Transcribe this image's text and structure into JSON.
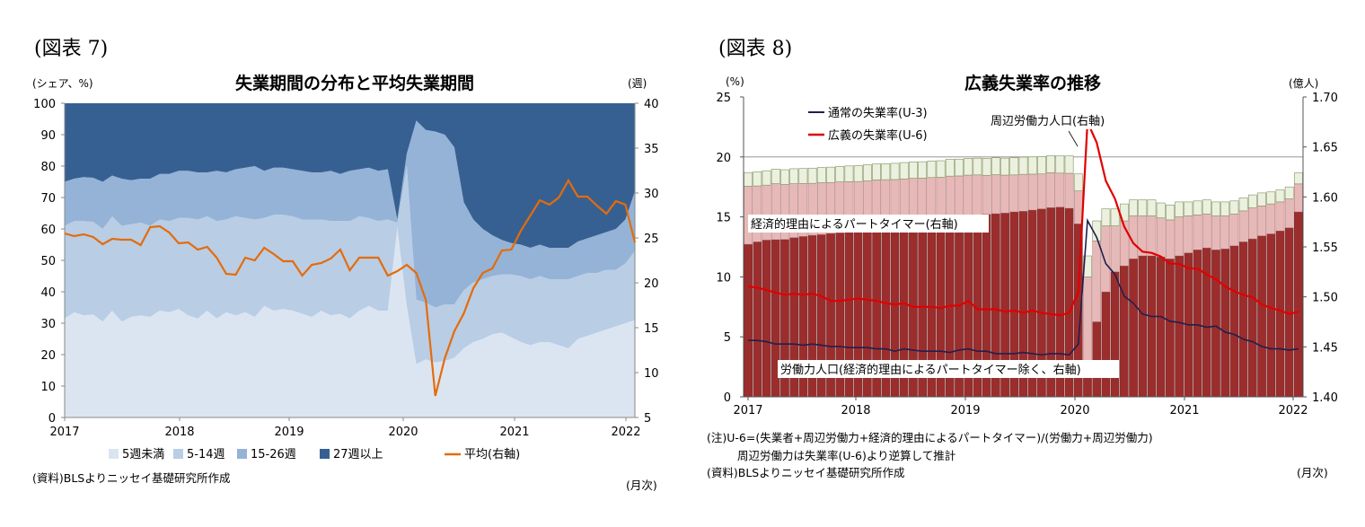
{
  "left": {
    "fig_label": "(図表 7)",
    "title": "失業期間の分布と平均失業期間",
    "left_unit": "(シェア、%)",
    "right_unit": "(週)",
    "source": "(資料)BLSよりニッセイ基礎研究所作成",
    "month_label": "(月次)",
    "legend": [
      "5週未満",
      "5-14週",
      "15-26週",
      "27週以上",
      "平均(右軸)"
    ]
  },
  "right": {
    "fig_label": "(図表 8)",
    "title": "広義失業率の推移",
    "left_unit": "(%)",
    "right_unit": "(億人)",
    "note1": "(注)U-6=(失業者+周辺労働力+経済的理由によるパートタイマー)/(労働力+周辺労働力)",
    "note2": "周辺労働力は失業率(U-6)より逆算して推計",
    "source": "(資料)BLSよりニッセイ基礎研究所作成",
    "month_label": "(月次)",
    "ann_part_time": "経済的理由によるパートタイマー(右軸)",
    "ann_marginal": "周辺労働力人口(右軸)",
    "ann_labor": "労働力人口(経済的理由によるパートタイマー除く、右軸)",
    "legend": [
      "通常の失業率(U-3)",
      "広義の失業率(U-6)"
    ]
  },
  "colors": {
    "under5": "#dbe5f1",
    "w5_14": "#b9cde5",
    "w15_26": "#95b3d7",
    "w27": "#376092",
    "avg": "#e46c0a",
    "labor": "#9b2d2d",
    "parttime": "#e6b9b8",
    "marginal": "#ebf1de",
    "u3": "#1f1f4d",
    "u6": "#e00000"
  },
  "chart_data": [
    {
      "type": "area",
      "title": "失業期間の分布と平均失業期間",
      "xlabel": "",
      "ylabel": "(シェア、%)",
      "y2label": "(週)",
      "x_ticks": [
        "2017",
        "2018",
        "2019",
        "2020",
        "2021",
        "2022"
      ],
      "ylim": [
        0,
        100
      ],
      "y2lim": [
        5,
        40
      ],
      "y_ticks": [
        0,
        10,
        20,
        30,
        40,
        50,
        60,
        70,
        80,
        90,
        100
      ],
      "y2_ticks": [
        5,
        10,
        15,
        20,
        25,
        30,
        35,
        40
      ],
      "stacked": true,
      "series": [
        {
          "name": "5週未満",
          "values": [
            31.5,
            33.5,
            32.5,
            32.8,
            30.5,
            34,
            30.5,
            32,
            32.5,
            32,
            34,
            33.5,
            34.5,
            32.5,
            31.5,
            34,
            31.5,
            33.5,
            32.5,
            33.5,
            32,
            35.5,
            34,
            34.5,
            34,
            33,
            32,
            34,
            32.5,
            33,
            31.5,
            34,
            35.5,
            34,
            34,
            60.5,
            35.5,
            17,
            18.5,
            17.5,
            18,
            19,
            22,
            24,
            25,
            26.5,
            27,
            25.5,
            24,
            23,
            24,
            24,
            23,
            22,
            25,
            26,
            27,
            28,
            29,
            30,
            31
          ]
        },
        {
          "name": "5-14週",
          "values": [
            29.5,
            29,
            30,
            29.5,
            29.5,
            30,
            30.5,
            29.5,
            29.5,
            29,
            29,
            29,
            29,
            31,
            31.5,
            30,
            31,
            29.5,
            31.5,
            30,
            31,
            28,
            30.5,
            30,
            30,
            30,
            31,
            29,
            30,
            29.5,
            31,
            30,
            28,
            28.5,
            29,
            1.5,
            44.5,
            20.5,
            18,
            17.5,
            18,
            17,
            18.5,
            19,
            19,
            18.5,
            18.5,
            20,
            21,
            21,
            21,
            20,
            21,
            22,
            20,
            20,
            19,
            19,
            18,
            19,
            22
          ]
        },
        {
          "name": "15-26週",
          "values": [
            14,
            13.5,
            14,
            14,
            15,
            13,
            15,
            14,
            14,
            15,
            14.5,
            15,
            15,
            15,
            15,
            14,
            16,
            15,
            15,
            16,
            17,
            15,
            15,
            15,
            15,
            15.5,
            15,
            15,
            16,
            15,
            16,
            15,
            16,
            16,
            16,
            1,
            4,
            57,
            55,
            56,
            54,
            50,
            28,
            20,
            16,
            13,
            11,
            10,
            10,
            10,
            10,
            10,
            10,
            10,
            11,
            11,
            12,
            12,
            13,
            14,
            19
          ]
        },
        {
          "name": "27週以上",
          "values": [
            25,
            24,
            23.5,
            23.7,
            25,
            23,
            24,
            24.5,
            24,
            24,
            22.5,
            22.5,
            21.5,
            21.5,
            22,
            22,
            21.5,
            22,
            21,
            20.5,
            20,
            21.5,
            20.5,
            20.5,
            21,
            21.5,
            22,
            22,
            21.5,
            22.5,
            21.5,
            21,
            20.5,
            21.5,
            21,
            37,
            16,
            5.5,
            8.5,
            9,
            10,
            14,
            31.5,
            37,
            40,
            42,
            43.5,
            44.5,
            45,
            46,
            45,
            46,
            46,
            46,
            44,
            43,
            42,
            41,
            40,
            37,
            28
          ]
        },
        {
          "name": "平均(右軸)",
          "axis": "right",
          "values": [
            25.5,
            25.2,
            25.4,
            25.1,
            24.3,
            24.9,
            24.8,
            24.8,
            24.2,
            26.2,
            26.3,
            25.6,
            24.4,
            24.5,
            23.7,
            24,
            22.8,
            21,
            20.9,
            22.8,
            22.5,
            23.9,
            23.2,
            22.4,
            22.4,
            20.8,
            22,
            22.2,
            22.7,
            23.7,
            21.4,
            22.8,
            22.8,
            22.8,
            20.8,
            21.3,
            22,
            21.1,
            18.1,
            7.4,
            11.6,
            14.6,
            16.6,
            19.4,
            21.1,
            21.6,
            23.6,
            23.7,
            25.8,
            27.5,
            29.2,
            28.7,
            29.5,
            31.4,
            29.6,
            29.6,
            28.6,
            27.7,
            29.1,
            28.7,
            24.5
          ]
        }
      ]
    },
    {
      "type": "bar",
      "title": "広義失業率の推移",
      "xlabel": "",
      "ylabel": "(%)",
      "y2label": "(億人)",
      "x_ticks": [
        "2017",
        "2018",
        "2019",
        "2020",
        "2021",
        "2022"
      ],
      "ylim": [
        0,
        25
      ],
      "y2lim": [
        1.4,
        1.7
      ],
      "y_ticks": [
        0,
        5,
        10,
        15,
        20,
        25
      ],
      "y2_ticks": [
        "1.40",
        "1.45",
        "1.50",
        "1.55",
        "1.60",
        "1.65",
        "1.70"
      ],
      "stacked": true,
      "series": [
        {
          "name": "労働力人口(経済的理由によるパートタイマー除く、右軸)",
          "axis": "right",
          "values": [
            1.5526,
            1.555,
            1.5568,
            1.5572,
            1.5574,
            1.5592,
            1.5604,
            1.5616,
            1.5622,
            1.5634,
            1.564,
            1.5652,
            1.5664,
            1.5682,
            1.57,
            1.5712,
            1.5724,
            1.573,
            1.5736,
            1.5748,
            1.5754,
            1.5766,
            1.5778,
            1.579,
            1.5808,
            1.582,
            1.5826,
            1.5832,
            1.5838,
            1.585,
            1.5856,
            1.5868,
            1.588,
            1.5892,
            1.5898,
            1.5886,
            1.573,
            1.435,
            1.475,
            1.505,
            1.525,
            1.531,
            1.538,
            1.541,
            1.541,
            1.54,
            1.538,
            1.541,
            1.544,
            1.547,
            1.549,
            1.547,
            1.548,
            1.551,
            1.555,
            1.558,
            1.561,
            1.563,
            1.566,
            1.569,
            1.585
          ]
        },
        {
          "name": "経済的理由によるパートタイマー(右軸)",
          "axis": "right",
          "values": [
            0.058,
            0.056,
            0.055,
            0.056,
            0.055,
            0.054,
            0.053,
            0.052,
            0.052,
            0.051,
            0.051,
            0.05,
            0.049,
            0.048,
            0.047,
            0.046,
            0.045,
            0.045,
            0.045,
            0.044,
            0.044,
            0.043,
            0.043,
            0.042,
            0.041,
            0.04,
            0.039,
            0.039,
            0.038,
            0.037,
            0.037,
            0.036,
            0.035,
            0.035,
            0.034,
            0.035,
            0.033,
            0.085,
            0.081,
            0.066,
            0.046,
            0.045,
            0.043,
            0.04,
            0.04,
            0.039,
            0.039,
            0.039,
            0.037,
            0.035,
            0.034,
            0.034,
            0.033,
            0.032,
            0.031,
            0.031,
            0.03,
            0.03,
            0.029,
            0.029,
            0.028
          ]
        },
        {
          "name": "周辺労働力人口(右軸)",
          "axis": "right",
          "values": [
            0.0138,
            0.0142,
            0.0144,
            0.0146,
            0.0148,
            0.015,
            0.015,
            0.0152,
            0.0152,
            0.0154,
            0.0156,
            0.0158,
            0.016,
            0.016,
            0.016,
            0.016,
            0.0162,
            0.0164,
            0.0164,
            0.0164,
            0.0166,
            0.0166,
            0.0168,
            0.0168,
            0.0168,
            0.0168,
            0.017,
            0.017,
            0.017,
            0.0172,
            0.0172,
            0.0172,
            0.0172,
            0.0172,
            0.0172,
            0.0174,
            0.017,
            0.021,
            0.02,
            0.017,
            0.017,
            0.017,
            0.016,
            0.016,
            0.016,
            0.015,
            0.015,
            0.015,
            0.014,
            0.014,
            0.014,
            0.014,
            0.014,
            0.013,
            0.013,
            0.013,
            0.013,
            0.012,
            0.012,
            0.012,
            0.011
          ]
        },
        {
          "name": "通常の失業率(U-3)",
          "type": "line",
          "values": [
            4.7,
            4.7,
            4.6,
            4.4,
            4.4,
            4.4,
            4.3,
            4.4,
            4.3,
            4.2,
            4.2,
            4.1,
            4.1,
            4.1,
            4.0,
            4.0,
            3.8,
            4.0,
            3.9,
            3.8,
            3.8,
            3.8,
            3.7,
            3.9,
            4.0,
            3.8,
            3.8,
            3.6,
            3.6,
            3.6,
            3.7,
            3.6,
            3.5,
            3.6,
            3.6,
            3.5,
            4.4,
            14.7,
            13.3,
            11.1,
            10.2,
            8.4,
            7.8,
            6.9,
            6.7,
            6.7,
            6.3,
            6.2,
            6.0,
            6.0,
            5.8,
            5.9,
            5.4,
            5.2,
            4.8,
            4.6,
            4.2,
            4.0,
            4.0,
            3.9,
            4.0
          ]
        },
        {
          "name": "広義の失業率(U-6)",
          "type": "line",
          "values": [
            9.2,
            9.1,
            8.9,
            8.7,
            8.5,
            8.6,
            8.5,
            8.6,
            8.4,
            8.0,
            8.0,
            8.1,
            8.2,
            8.1,
            8.0,
            7.8,
            7.7,
            7.8,
            7.5,
            7.5,
            7.5,
            7.4,
            7.6,
            7.6,
            8.0,
            7.3,
            7.3,
            7.3,
            7.1,
            7.2,
            7.0,
            7.2,
            7.0,
            6.9,
            6.8,
            7.0,
            8.7,
            22.9,
            21.2,
            18.0,
            16.5,
            14.2,
            12.8,
            12.1,
            12.0,
            11.7,
            11.1,
            11.1,
            10.7,
            10.7,
            10.2,
            9.8,
            9.2,
            8.8,
            8.5,
            8.3,
            7.7,
            7.4,
            7.2,
            6.9,
            7.1
          ]
        }
      ]
    }
  ]
}
